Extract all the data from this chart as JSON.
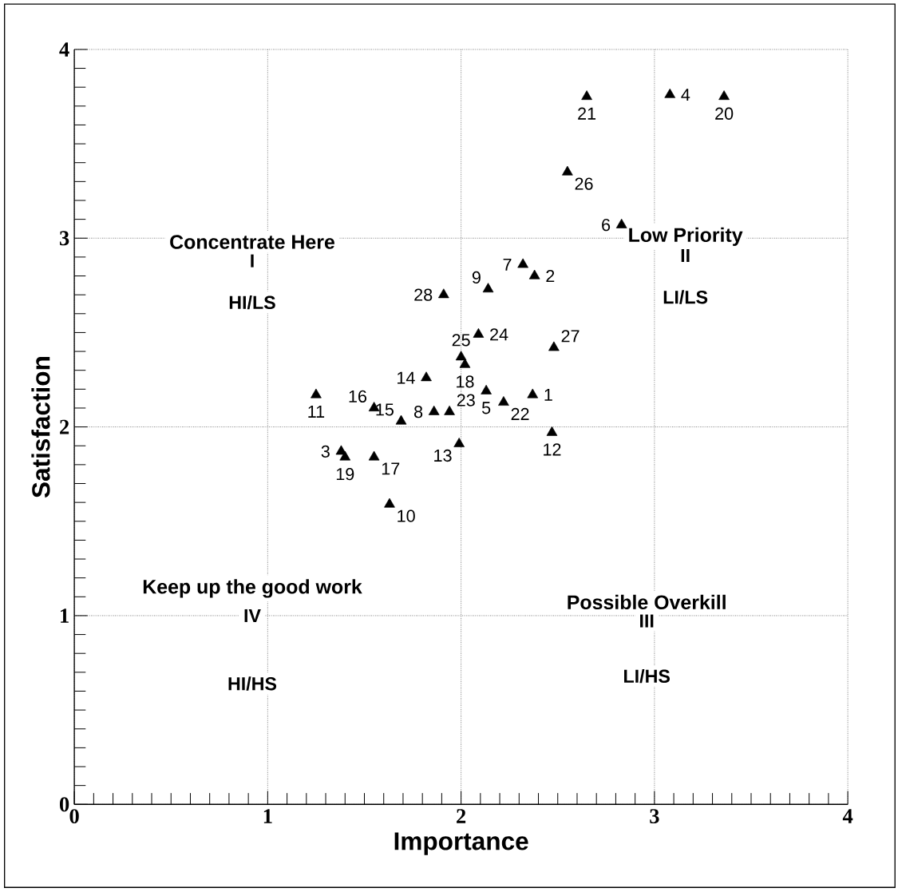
{
  "chart_data": {
    "type": "scatter",
    "xlabel": "Importance",
    "ylabel": "Satisfaction",
    "xlim": [
      0,
      4
    ],
    "ylim": [
      0,
      4
    ],
    "xticks": [
      0,
      1,
      2,
      3,
      4
    ],
    "yticks": [
      0,
      1,
      2,
      3,
      4
    ],
    "grid": true,
    "marker": "triangle",
    "series": [
      {
        "color": "#000000",
        "x": [
          2.65,
          3.08,
          3.36,
          2.55,
          2.83,
          2.32,
          2.38,
          2.14,
          1.91,
          2.09,
          2.48,
          2.0,
          2.02,
          1.82,
          2.13,
          2.37,
          1.25,
          1.55,
          2.22,
          1.69,
          1.86,
          1.94,
          2.47,
          1.99,
          1.38,
          1.4,
          1.55,
          1.63
        ],
        "values": [
          3.75,
          3.76,
          3.75,
          3.35,
          3.07,
          2.86,
          2.8,
          2.73,
          2.7,
          2.49,
          2.42,
          2.37,
          2.33,
          2.26,
          2.19,
          2.17,
          2.17,
          2.1,
          2.13,
          2.03,
          2.08,
          2.08,
          1.97,
          1.91,
          1.87,
          1.84,
          1.84,
          1.59
        ]
      }
    ],
    "annotations": [
      "Concentrate Here",
      "I",
      "HI/LS",
      "Low Priority",
      "II",
      "LI/LS",
      "Possible Overkill",
      "III",
      "LI/HS",
      "Keep up the good work",
      "IV",
      "HI/HS",
      {
        "text": "21",
        "x": 2.65,
        "y": 3.75
      },
      {
        "text": "4",
        "x": 3.08,
        "y": 3.76
      },
      {
        "text": "20",
        "x": 3.36,
        "y": 3.75
      },
      {
        "text": "26",
        "x": 2.55,
        "y": 3.35
      },
      {
        "text": "6",
        "x": 2.83,
        "y": 3.07
      },
      {
        "text": "7",
        "x": 2.32,
        "y": 2.86
      },
      {
        "text": "2",
        "x": 2.38,
        "y": 2.8
      },
      {
        "text": "9",
        "x": 2.14,
        "y": 2.73
      },
      {
        "text": "28",
        "x": 1.91,
        "y": 2.7
      },
      {
        "text": "24",
        "x": 2.09,
        "y": 2.49
      },
      {
        "text": "27",
        "x": 2.48,
        "y": 2.42
      },
      {
        "text": "25",
        "x": 2.0,
        "y": 2.37
      },
      {
        "text": "18",
        "x": 2.02,
        "y": 2.33
      },
      {
        "text": "14",
        "x": 1.82,
        "y": 2.26
      },
      {
        "text": "5",
        "x": 2.13,
        "y": 2.19
      },
      {
        "text": "1",
        "x": 2.37,
        "y": 2.17
      },
      {
        "text": "11",
        "x": 1.25,
        "y": 2.17
      },
      {
        "text": "16",
        "x": 1.55,
        "y": 2.1
      },
      {
        "text": "22",
        "x": 2.22,
        "y": 2.13
      },
      {
        "text": "15",
        "x": 1.69,
        "y": 2.03
      },
      {
        "text": "8",
        "x": 1.86,
        "y": 2.08
      },
      {
        "text": "23",
        "x": 1.94,
        "y": 2.08
      },
      {
        "text": "12",
        "x": 2.47,
        "y": 1.97
      },
      {
        "text": "13",
        "x": 1.99,
        "y": 1.91
      },
      {
        "text": "3",
        "x": 1.38,
        "y": 1.87
      },
      {
        "text": "19",
        "x": 1.4,
        "y": 1.84
      },
      {
        "text": "17",
        "x": 1.55,
        "y": 1.84
      },
      {
        "text": "10",
        "x": 1.63,
        "y": 1.59
      }
    ]
  }
}
